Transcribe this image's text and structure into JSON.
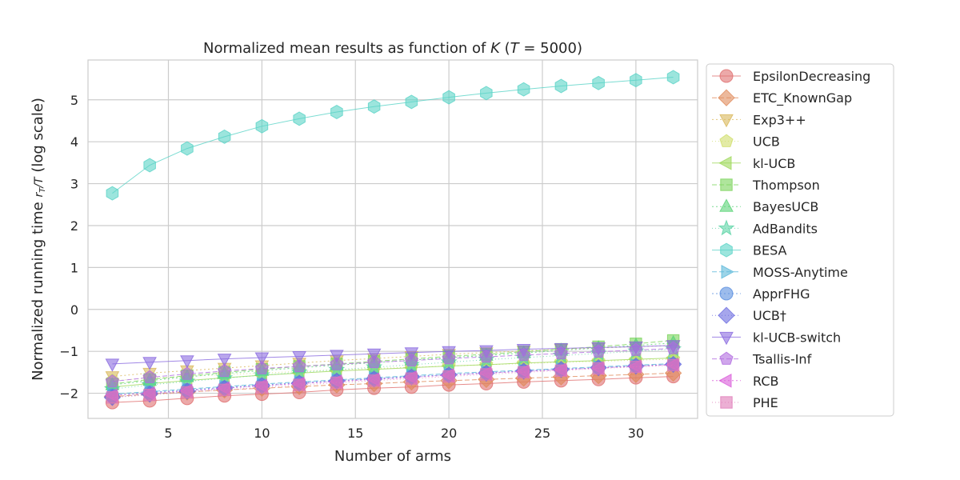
{
  "chart_data": {
    "type": "line",
    "title_prefix": "Normalized mean results as function of ",
    "title_k": "K",
    "title_mid": " (",
    "title_t": "T",
    "title_suffix": " = 5000)",
    "xlabel": "Number of arms",
    "ylabel_prefix": "Normalized running time ",
    "ylabel_suffix": " (log scale)",
    "xlim": [
      0.7,
      33.3
    ],
    "ylim": [
      -2.6,
      5.95
    ],
    "xticks": [
      5,
      10,
      15,
      20,
      25,
      30
    ],
    "xtick_labels": [
      "5",
      "10",
      "15",
      "20",
      "25",
      "30"
    ],
    "yticks": [
      -2,
      -1,
      0,
      1,
      2,
      3,
      4,
      5
    ],
    "ytick_labels": [
      "−2",
      "−1",
      "0",
      "1",
      "2",
      "3",
      "4",
      "5"
    ],
    "grid": true,
    "legend_position": "outside-right",
    "x": [
      2,
      4,
      6,
      8,
      10,
      12,
      14,
      16,
      18,
      20,
      22,
      24,
      26,
      28,
      30,
      32
    ],
    "series": [
      {
        "name": "EpsilonDecreasing",
        "color": "#e06f6f",
        "marker": "circle",
        "dash": "",
        "values": [
          -2.22,
          -2.18,
          -2.12,
          -2.06,
          -2.02,
          -1.98,
          -1.92,
          -1.88,
          -1.85,
          -1.8,
          -1.77,
          -1.73,
          -1.7,
          -1.67,
          -1.63,
          -1.6
        ]
      },
      {
        "name": "ETC_KnownGap",
        "color": "#e08a5a",
        "marker": "diamond",
        "dash": "6,3",
        "values": [
          -2.08,
          -2.02,
          -1.97,
          -1.92,
          -1.88,
          -1.84,
          -1.8,
          -1.77,
          -1.73,
          -1.7,
          -1.67,
          -1.64,
          -1.61,
          -1.58,
          -1.55,
          -1.52
        ]
      },
      {
        "name": "Exp3++",
        "color": "#d9b85a",
        "marker": "triangle-down",
        "dash": "2,3",
        "values": [
          -1.6,
          -1.52,
          -1.46,
          -1.4,
          -1.34,
          -1.28,
          -1.22,
          -1.17,
          -1.12,
          -1.07,
          -1.03,
          -0.99,
          -0.95,
          -0.92,
          -0.89,
          -0.86
        ]
      },
      {
        "name": "UCB",
        "color": "#d0de6a",
        "marker": "pentagon",
        "dash": "1,3",
        "values": [
          -1.7,
          -1.64,
          -1.6,
          -1.55,
          -1.52,
          -1.48,
          -1.44,
          -1.41,
          -1.38,
          -1.35,
          -1.32,
          -1.29,
          -1.26,
          -1.24,
          -1.21,
          -1.19
        ]
      },
      {
        "name": "kl-UCB",
        "color": "#9fd85a",
        "marker": "triangle-left",
        "dash": "",
        "values": [
          -1.85,
          -1.77,
          -1.7,
          -1.63,
          -1.57,
          -1.52,
          -1.47,
          -1.43,
          -1.39,
          -1.35,
          -1.32,
          -1.28,
          -1.25,
          -1.22,
          -1.19,
          -1.16
        ]
      },
      {
        "name": "Thompson",
        "color": "#7ad35a",
        "marker": "square",
        "dash": "6,3",
        "values": [
          -1.78,
          -1.67,
          -1.58,
          -1.5,
          -1.43,
          -1.36,
          -1.3,
          -1.24,
          -1.18,
          -1.12,
          -1.07,
          -1.01,
          -0.95,
          -0.89,
          -0.82,
          -0.74
        ]
      },
      {
        "name": "BayesUCB",
        "color": "#5ad377",
        "marker": "triangle-up",
        "dash": "2,3",
        "values": [
          -1.8,
          -1.7,
          -1.61,
          -1.53,
          -1.46,
          -1.39,
          -1.33,
          -1.27,
          -1.21,
          -1.15,
          -1.1,
          -1.04,
          -0.98,
          -0.92,
          -0.86,
          -0.8
        ]
      },
      {
        "name": "AdBandits",
        "color": "#5ad3a5",
        "marker": "star",
        "dash": "1,3",
        "values": [
          -1.9,
          -1.8,
          -1.72,
          -1.64,
          -1.57,
          -1.5,
          -1.44,
          -1.38,
          -1.32,
          -1.26,
          -1.2,
          -1.15,
          -1.1,
          -1.05,
          -1.0,
          -0.95
        ]
      },
      {
        "name": "BESA",
        "color": "#5ad3c7",
        "marker": "hexagon",
        "dash": "",
        "values": [
          2.77,
          3.44,
          3.84,
          4.12,
          4.37,
          4.55,
          4.71,
          4.84,
          4.95,
          5.06,
          5.16,
          5.25,
          5.33,
          5.4,
          5.47,
          5.54
        ]
      },
      {
        "name": "MOSS-Anytime",
        "color": "#5ab8d9",
        "marker": "triangle-right",
        "dash": "6,3",
        "values": [
          -2.02,
          -1.96,
          -1.9,
          -1.84,
          -1.78,
          -1.73,
          -1.68,
          -1.63,
          -1.58,
          -1.53,
          -1.49,
          -1.45,
          -1.41,
          -1.37,
          -1.33,
          -1.29
        ]
      },
      {
        "name": "ApprFHG",
        "color": "#5a8fe0",
        "marker": "circle",
        "dash": "2,3",
        "values": [
          -2.05,
          -1.98,
          -1.92,
          -1.86,
          -1.8,
          -1.75,
          -1.7,
          -1.65,
          -1.6,
          -1.56,
          -1.51,
          -1.47,
          -1.43,
          -1.39,
          -1.35,
          -1.31
        ]
      },
      {
        "name": "UCB†",
        "color": "#6a6ae0",
        "marker": "diamond",
        "dash": "1,3",
        "values": [
          -2.1,
          -2.02,
          -1.95,
          -1.88,
          -1.82,
          -1.76,
          -1.71,
          -1.66,
          -1.61,
          -1.56,
          -1.52,
          -1.47,
          -1.43,
          -1.39,
          -1.35,
          -1.31
        ]
      },
      {
        "name": "kl-UCB-switch",
        "color": "#8a6ae0",
        "marker": "triangle-down",
        "dash": "",
        "values": [
          -1.3,
          -1.26,
          -1.22,
          -1.18,
          -1.15,
          -1.12,
          -1.09,
          -1.06,
          -1.03,
          -1.0,
          -0.98,
          -0.95,
          -0.93,
          -0.91,
          -0.89,
          -0.86
        ]
      },
      {
        "name": "Tsallis-Inf",
        "color": "#b06ae0",
        "marker": "pentagon",
        "dash": "6,3",
        "values": [
          -1.72,
          -1.62,
          -1.54,
          -1.47,
          -1.41,
          -1.36,
          -1.31,
          -1.26,
          -1.22,
          -1.17,
          -1.13,
          -1.09,
          -1.05,
          -1.01,
          -0.97,
          -0.93
        ]
      },
      {
        "name": "RCB",
        "color": "#d95ad9",
        "marker": "triangle-left",
        "dash": "2,3",
        "values": [
          -2.05,
          -2.0,
          -1.94,
          -1.88,
          -1.82,
          -1.77,
          -1.72,
          -1.67,
          -1.62,
          -1.57,
          -1.52,
          -1.48,
          -1.44,
          -1.4,
          -1.36,
          -1.32
        ]
      },
      {
        "name": "PHE",
        "color": "#e07ab8",
        "marker": "square",
        "dash": "1,3",
        "values": [
          -2.1,
          -2.04,
          -1.98,
          -1.92,
          -1.86,
          -1.8,
          -1.75,
          -1.7,
          -1.65,
          -1.6,
          -1.55,
          -1.5,
          -1.46,
          -1.41,
          -1.37,
          -1.33
        ]
      }
    ]
  }
}
